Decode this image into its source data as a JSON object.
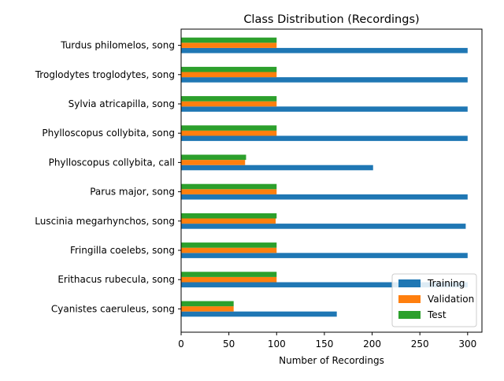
{
  "chart_data": {
    "type": "bar",
    "orientation": "horizontal",
    "title": "Class Distribution (Recordings)",
    "xlabel": "Number of Recordings",
    "ylabel": "",
    "xlim": [
      0,
      315
    ],
    "xticks": [
      0,
      50,
      100,
      150,
      200,
      250,
      300
    ],
    "grid": false,
    "legend_position": "lower-right",
    "categories": [
      "Turdus philomelos, song",
      "Troglodytes troglodytes, song",
      "Sylvia atricapilla, song",
      "Phylloscopus collybita, song",
      "Phylloscopus collybita, call",
      "Parus major, song",
      "Luscinia megarhynchos, song",
      "Fringilla coelebs, song",
      "Erithacus rubecula, song",
      "Cyanistes caeruleus, song"
    ],
    "series": [
      {
        "name": "Training",
        "color": "#1f77b4",
        "values": [
          300,
          300,
          300,
          300,
          201,
          300,
          298,
          300,
          300,
          163
        ]
      },
      {
        "name": "Validation",
        "color": "#ff7f0e",
        "values": [
          100,
          100,
          100,
          100,
          67,
          100,
          99,
          100,
          100,
          55
        ]
      },
      {
        "name": "Test",
        "color": "#2ca02c",
        "values": [
          100,
          100,
          100,
          100,
          68,
          100,
          100,
          100,
          100,
          55
        ]
      }
    ]
  }
}
